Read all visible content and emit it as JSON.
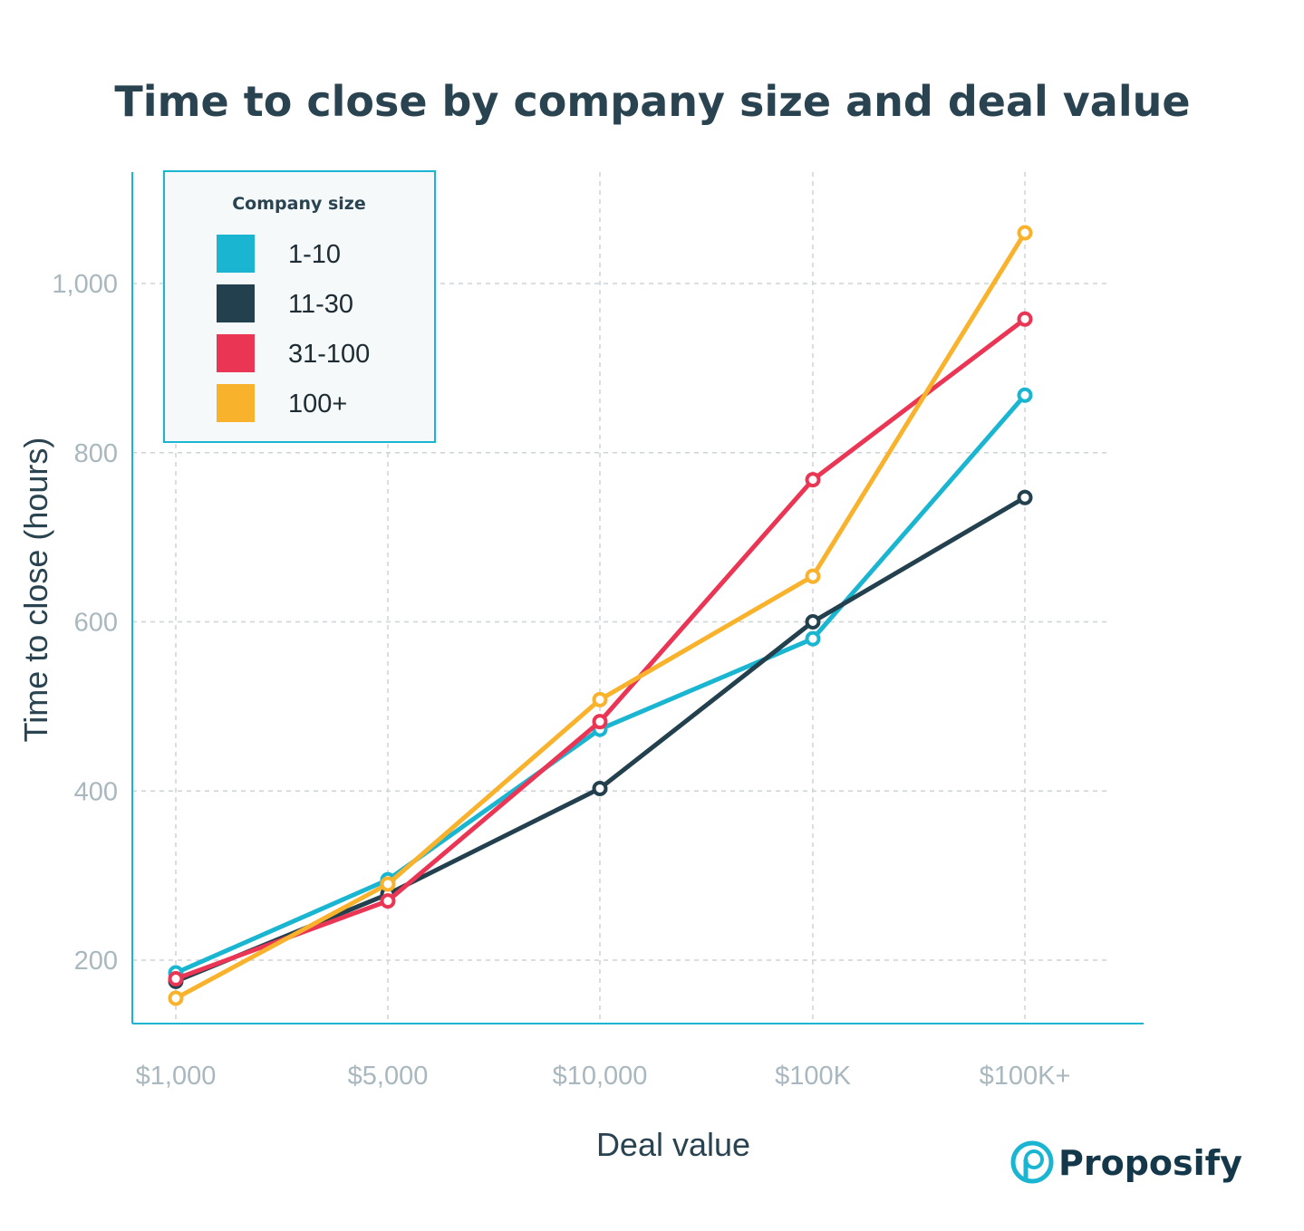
{
  "chart_data": {
    "type": "line",
    "title": "Time to close by company size and deal value",
    "xlabel": "Deal value",
    "ylabel": "Time to close (hours)",
    "categories": [
      "$1,000",
      "$5,000",
      "$10,000",
      "$100K",
      "$100K+"
    ],
    "ylim": [
      125,
      1130
    ],
    "yticks": [
      200,
      400,
      600,
      800,
      1000
    ],
    "ytick_labels": [
      "200",
      "400",
      "600",
      "800",
      "1,000"
    ],
    "grid": true,
    "legend": {
      "title": "Company size",
      "placement": "top-left"
    },
    "series": [
      {
        "name": "1-10",
        "color": "#1ab6d1",
        "values": [
          185,
          295,
          473,
          580,
          868
        ]
      },
      {
        "name": "11-30",
        "color": "#23404e",
        "values": [
          175,
          278,
          403,
          600,
          747
        ]
      },
      {
        "name": "31-100",
        "color": "#ea3654",
        "values": [
          178,
          270,
          482,
          768,
          958
        ]
      },
      {
        "name": "100+",
        "color": "#f9b22c",
        "values": [
          155,
          290,
          508,
          654,
          1060
        ]
      }
    ]
  },
  "brand": {
    "name": "Proposify",
    "logo_icon": "proposify-p-logo-icon",
    "color": "#1ab6d1"
  },
  "theme": {
    "axis_color": "#1ab6d1",
    "grid_color": "#cdd3d6",
    "tick_color": "#a9b8bf",
    "text_color": "#2a4351"
  }
}
